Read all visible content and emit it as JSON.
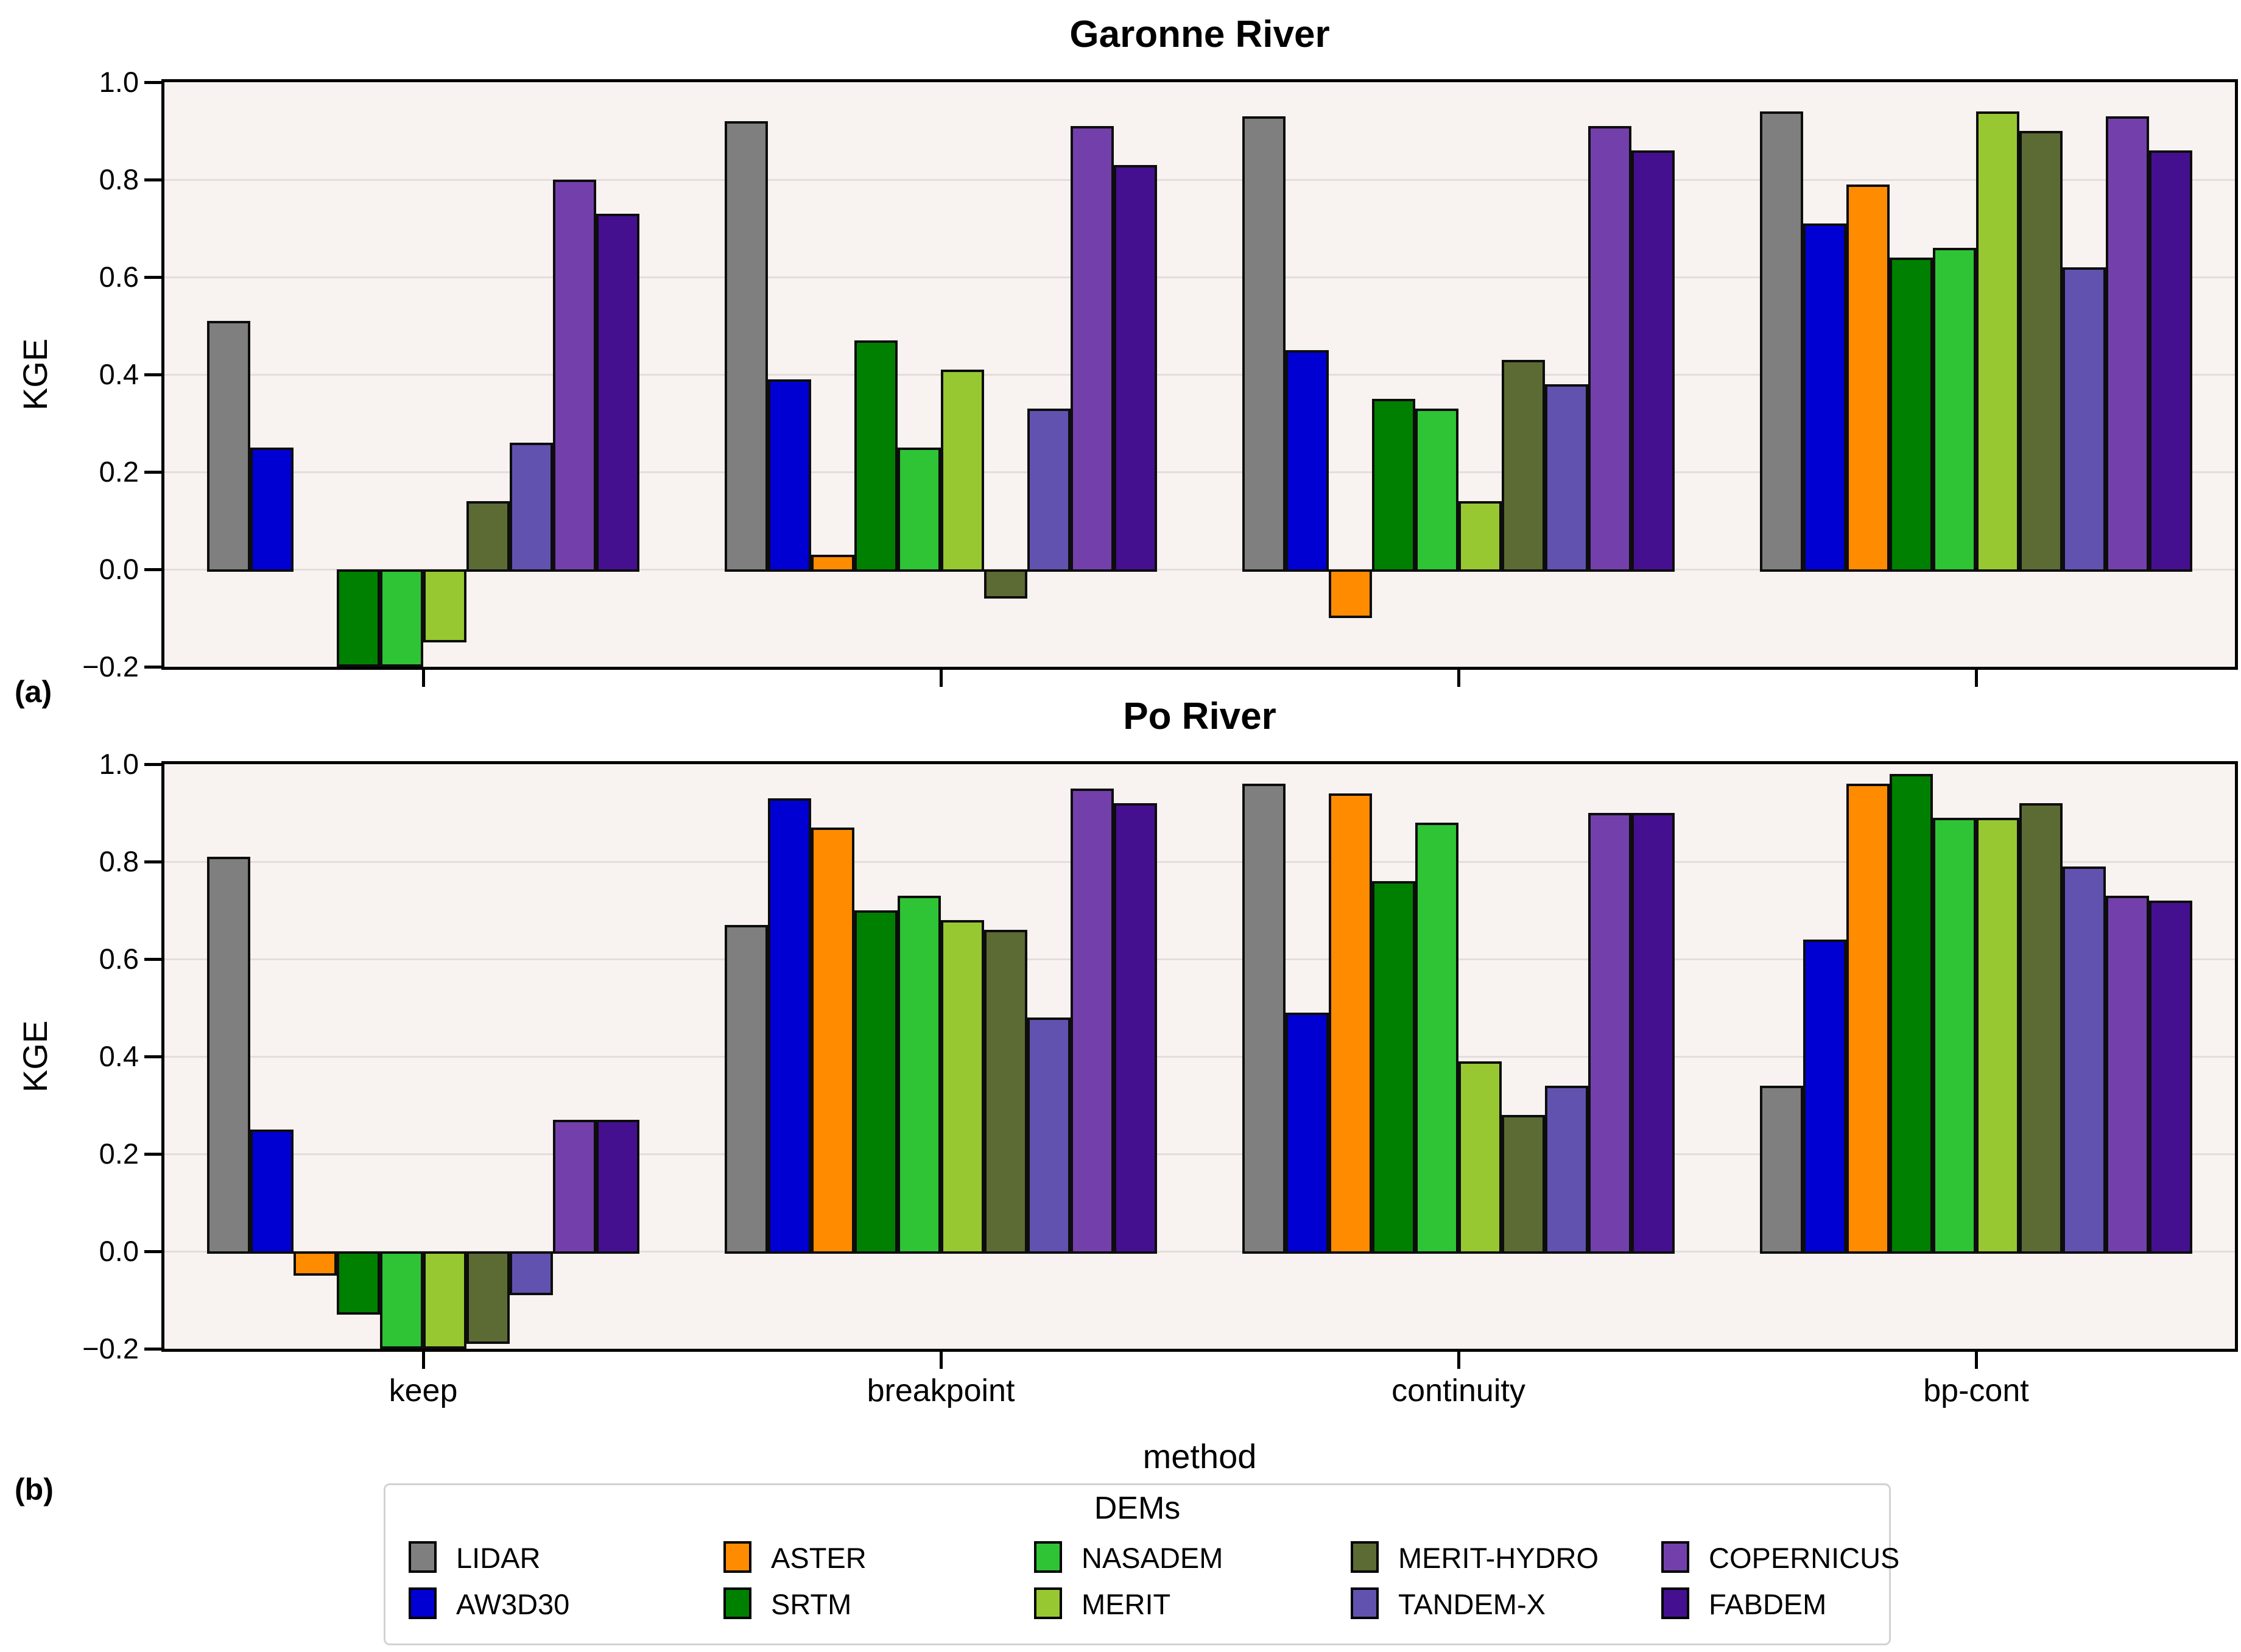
{
  "figure": {
    "panel_a_label": "(a)",
    "panel_b_label": "(b)",
    "x_axis_label": "method",
    "y_axis_label": "KGE",
    "plot_background": "#f8f3f0",
    "grid_color": "#e3dedb"
  },
  "legend": {
    "title": "DEMs",
    "entries": [
      "LIDAR",
      "AW3D30",
      "ASTER",
      "SRTM",
      "NASADEM",
      "MERIT",
      "MERIT-HYDRO",
      "TANDEM-X",
      "COPERNICUS",
      "FABDEM"
    ]
  },
  "chart_data": [
    {
      "type": "bar",
      "title": "Garonne River",
      "xlabel": "method",
      "ylabel": "KGE",
      "categories": [
        "keep",
        "breakpoint",
        "continuity",
        "bp-cont"
      ],
      "ylim": [
        -0.2,
        1.0
      ],
      "y_ticks": {
        "values": [
          1.0,
          0.8,
          0.6,
          0.4,
          0.2,
          0.0,
          -0.2
        ],
        "labels": [
          "1.0",
          "0.8",
          "0.6",
          "0.4",
          "0.2",
          "0.0",
          "−0.2"
        ]
      },
      "grid_values": [
        0.8,
        0.6,
        0.4,
        0.2,
        0.0
      ],
      "legend_position": "below-figure",
      "series": [
        {
          "name": "LIDAR",
          "color": "#7f7f7f",
          "values": [
            0.51,
            0.92,
            0.93,
            0.94
          ]
        },
        {
          "name": "AW3D30",
          "color": "#0000d3",
          "values": [
            0.25,
            0.39,
            0.45,
            0.71
          ]
        },
        {
          "name": "ASTER",
          "color": "#ff8c00",
          "values": [
            null,
            0.03,
            -0.1,
            0.79
          ]
        },
        {
          "name": "SRTM",
          "color": "#008000",
          "values": [
            -0.2,
            0.47,
            0.35,
            0.64
          ]
        },
        {
          "name": "NASADEM",
          "color": "#2ec436",
          "values": [
            -0.2,
            0.25,
            0.33,
            0.66
          ]
        },
        {
          "name": "MERIT",
          "color": "#97c832",
          "values": [
            -0.15,
            0.41,
            0.14,
            0.94
          ]
        },
        {
          "name": "MERIT-HYDRO",
          "color": "#5b6b33",
          "values": [
            0.14,
            -0.06,
            0.43,
            0.9
          ]
        },
        {
          "name": "TANDEM-X",
          "color": "#6252b0",
          "values": [
            0.26,
            0.33,
            0.38,
            0.62
          ]
        },
        {
          "name": "COPERNICUS",
          "color": "#7340ab",
          "values": [
            0.8,
            0.91,
            0.91,
            0.93
          ]
        },
        {
          "name": "FABDEM",
          "color": "#45108f",
          "values": [
            0.73,
            0.83,
            0.86,
            0.86
          ]
        }
      ]
    },
    {
      "type": "bar",
      "title": "Po River",
      "xlabel": "method",
      "ylabel": "KGE",
      "categories": [
        "keep",
        "breakpoint",
        "continuity",
        "bp-cont"
      ],
      "ylim": [
        -0.2,
        1.0
      ],
      "y_ticks": {
        "values": [
          1.0,
          0.8,
          0.6,
          0.4,
          0.2,
          0.0,
          -0.2
        ],
        "labels": [
          "1.0",
          "0.8",
          "0.6",
          "0.4",
          "0.2",
          "0.0",
          "−0.2"
        ]
      },
      "grid_values": [
        0.8,
        0.6,
        0.4,
        0.2,
        0.0
      ],
      "legend_position": "below-figure",
      "series": [
        {
          "name": "LIDAR",
          "color": "#7f7f7f",
          "values": [
            0.81,
            0.67,
            0.96,
            0.34
          ]
        },
        {
          "name": "AW3D30",
          "color": "#0000d3",
          "values": [
            0.25,
            0.93,
            0.49,
            0.64
          ]
        },
        {
          "name": "ASTER",
          "color": "#ff8c00",
          "values": [
            -0.05,
            0.87,
            0.94,
            0.96
          ]
        },
        {
          "name": "SRTM",
          "color": "#008000",
          "values": [
            -0.13,
            0.7,
            0.76,
            0.98
          ]
        },
        {
          "name": "NASADEM",
          "color": "#2ec436",
          "values": [
            -0.2,
            0.73,
            0.88,
            0.89
          ]
        },
        {
          "name": "MERIT",
          "color": "#97c832",
          "values": [
            -0.2,
            0.68,
            0.39,
            0.89
          ]
        },
        {
          "name": "MERIT-HYDRO",
          "color": "#5b6b33",
          "values": [
            -0.19,
            0.66,
            0.28,
            0.92
          ]
        },
        {
          "name": "TANDEM-X",
          "color": "#6252b0",
          "values": [
            -0.09,
            0.48,
            0.34,
            0.79
          ]
        },
        {
          "name": "COPERNICUS",
          "color": "#7340ab",
          "values": [
            0.27,
            0.95,
            0.9,
            0.73
          ]
        },
        {
          "name": "FABDEM",
          "color": "#45108f",
          "values": [
            0.27,
            0.92,
            0.9,
            0.72
          ]
        }
      ]
    }
  ]
}
